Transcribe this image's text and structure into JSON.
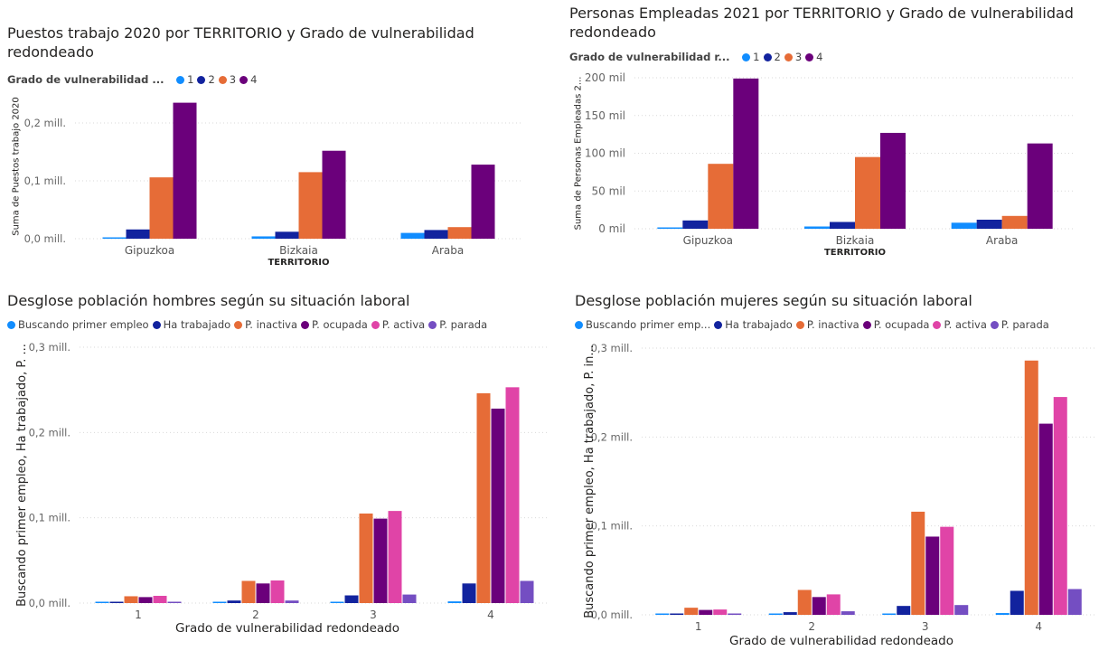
{
  "charts": {
    "puestos": {
      "title": "Puestos trabajo 2020 por TERRITORIO y Grado de vulnerabilidad\nredondeado",
      "legend_title": "Grado de vulnerabilidad ...",
      "chart_data": {
        "type": "bar",
        "categories": [
          "Gipuzkoa",
          "Bizkaia",
          "Araba"
        ],
        "series": [
          {
            "name": "1",
            "values": [
              2000,
              4000,
              10000
            ],
            "color": "#118DFF"
          },
          {
            "name": "2",
            "values": [
              16000,
              12000,
              15000
            ],
            "color": "#12239E"
          },
          {
            "name": "3",
            "values": [
              106000,
              115000,
              20000
            ],
            "color": "#E66C37"
          },
          {
            "name": "4",
            "values": [
              235000,
              152000,
              128000
            ],
            "color": "#6B007B"
          }
        ],
        "xlabel": "TERRITORIO",
        "ylabel": "Suma de Puestos trabajo 2020",
        "ylim": [
          0,
          250000
        ],
        "yticks": [
          0,
          100000,
          200000
        ],
        "ytick_labels": [
          "0,0 mill.",
          "0,1 mill.",
          "0,2 mill."
        ],
        "grid": true,
        "legend": "top-left"
      }
    },
    "personas": {
      "title": "Personas Empleadas 2021 por TERRITORIO y Grado de vulnerabilidad\nredondeado",
      "legend_title": "Grado de vulnerabilidad r...",
      "chart_data": {
        "type": "bar",
        "categories": [
          "Gipuzkoa",
          "Bizkaia",
          "Araba"
        ],
        "series": [
          {
            "name": "1",
            "values": [
              1500,
              3000,
              8000
            ],
            "color": "#118DFF"
          },
          {
            "name": "2",
            "values": [
              11000,
              9000,
              12000
            ],
            "color": "#12239E"
          },
          {
            "name": "3",
            "values": [
              86000,
              95000,
              17000
            ],
            "color": "#E66C37"
          },
          {
            "name": "4",
            "values": [
              199000,
              127000,
              113000
            ],
            "color": "#6B007B"
          }
        ],
        "xlabel": "TERRITORIO",
        "ylabel": "Suma de Personas Empleadas 2...",
        "ylim": [
          0,
          200000
        ],
        "yticks": [
          0,
          50000,
          100000,
          150000,
          200000
        ],
        "ytick_labels": [
          "0 mil",
          "50 mil",
          "100 mil",
          "150 mil",
          "200 mil"
        ],
        "grid": true,
        "legend": "top-left"
      }
    },
    "hombres": {
      "title": "Desglose población hombres según su situación laboral",
      "legend_title": "",
      "chart_data": {
        "type": "bar",
        "categories": [
          "1",
          "2",
          "3",
          "4"
        ],
        "series": [
          {
            "name": "Buscando primer empleo",
            "values": [
              500,
              500,
              1000,
              2000
            ],
            "color": "#118DFF"
          },
          {
            "name": "Ha trabajado",
            "values": [
              1000,
              3000,
              9000,
              23000
            ],
            "color": "#12239E"
          },
          {
            "name": "P. inactiva",
            "values": [
              8000,
              26000,
              105000,
              246000
            ],
            "color": "#E66C37"
          },
          {
            "name": "P. ocupada",
            "values": [
              7000,
              23000,
              99000,
              228000
            ],
            "color": "#6B007B"
          },
          {
            "name": "P. activa",
            "values": [
              8500,
              26500,
              108000,
              253000
            ],
            "color": "#E044A7"
          },
          {
            "name": "P. parada",
            "values": [
              1000,
              3000,
              10000,
              26000
            ],
            "color": "#744EC2"
          }
        ],
        "xlabel": "Grado de vulnerabilidad redondeado",
        "ylabel": "Buscando primer empleo, Ha trabajado, P. ...",
        "ylim": [
          0,
          300000
        ],
        "yticks": [
          0,
          100000,
          200000,
          300000
        ],
        "ytick_labels": [
          "0,0 mill.",
          "0,1 mill.",
          "0,2 mill.",
          "0,3 mill."
        ],
        "grid": true,
        "legend": "top-left"
      }
    },
    "mujeres": {
      "title": "Desglose población mujeres según su situación laboral",
      "legend_title": "",
      "chart_data": {
        "type": "bar",
        "categories": [
          "1",
          "2",
          "3",
          "4"
        ],
        "series": [
          {
            "name": "Buscando primer emp...",
            "values": [
              500,
              500,
              1000,
              2000
            ],
            "color": "#118DFF"
          },
          {
            "name": "Ha trabajado",
            "values": [
              1000,
              3000,
              10000,
              27000
            ],
            "color": "#12239E"
          },
          {
            "name": "P. inactiva",
            "values": [
              8000,
              28000,
              116000,
              286000
            ],
            "color": "#E66C37"
          },
          {
            "name": "P. ocupada",
            "values": [
              5500,
              20000,
              88000,
              215000
            ],
            "color": "#6B007B"
          },
          {
            "name": "P. activa",
            "values": [
              6000,
              23000,
              99000,
              245000
            ],
            "color": "#E044A7"
          },
          {
            "name": "P. parada",
            "values": [
              1000,
              4000,
              11000,
              29000
            ],
            "color": "#744EC2"
          }
        ],
        "xlabel": "Grado de vulnerabilidad redondeado",
        "ylabel": "Buscando primer empleo, Ha trabajado, P. in...",
        "ylim": [
          0,
          300000
        ],
        "yticks": [
          0,
          100000,
          200000,
          300000
        ],
        "ytick_labels": [
          "0,0 mill.",
          "0,1 mill.",
          "0,2 mill.",
          "0,3 mill."
        ],
        "grid": true,
        "legend": "top-left"
      }
    }
  }
}
